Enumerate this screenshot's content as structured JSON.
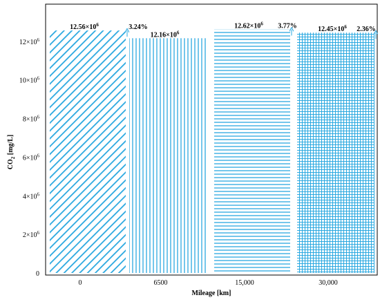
{
  "chart_data": {
    "type": "bar",
    "categories": [
      "0",
      "6500",
      "15,000",
      "30,000"
    ],
    "values": [
      12560000,
      12160000,
      12620000,
      12450000
    ],
    "data_labels": [
      "12.56×10",
      "12.16×10",
      "12.62×10",
      "12.45×10"
    ],
    "data_label_exponent": "6",
    "percent_labels": [
      "3.24%",
      "",
      "3.77%",
      "2.36%"
    ],
    "xlabel": "Mileage [km]",
    "ylabel_main": "CO",
    "ylabel_sub": "2",
    "ylabel_unit": " [mg/L]",
    "ylim": [
      0,
      12600000
    ],
    "yticks": [
      {
        "value": 0,
        "mantissa": "0",
        "exp": ""
      },
      {
        "value": 2000000,
        "mantissa": "2×10",
        "exp": "6"
      },
      {
        "value": 4000000,
        "mantissa": "4×10",
        "exp": "6"
      },
      {
        "value": 6000000,
        "mantissa": "6×10",
        "exp": "6"
      },
      {
        "value": 8000000,
        "mantissa": "8×10",
        "exp": "6"
      },
      {
        "value": 10000000,
        "mantissa": "10×10",
        "exp": "6"
      },
      {
        "value": 12000000,
        "mantissa": "12×10",
        "exp": "6"
      }
    ],
    "patterns": [
      "diagonal",
      "vertical",
      "horizontal",
      "grid"
    ],
    "bar_color": "#29a8e0",
    "grid": false,
    "legend": "none"
  }
}
